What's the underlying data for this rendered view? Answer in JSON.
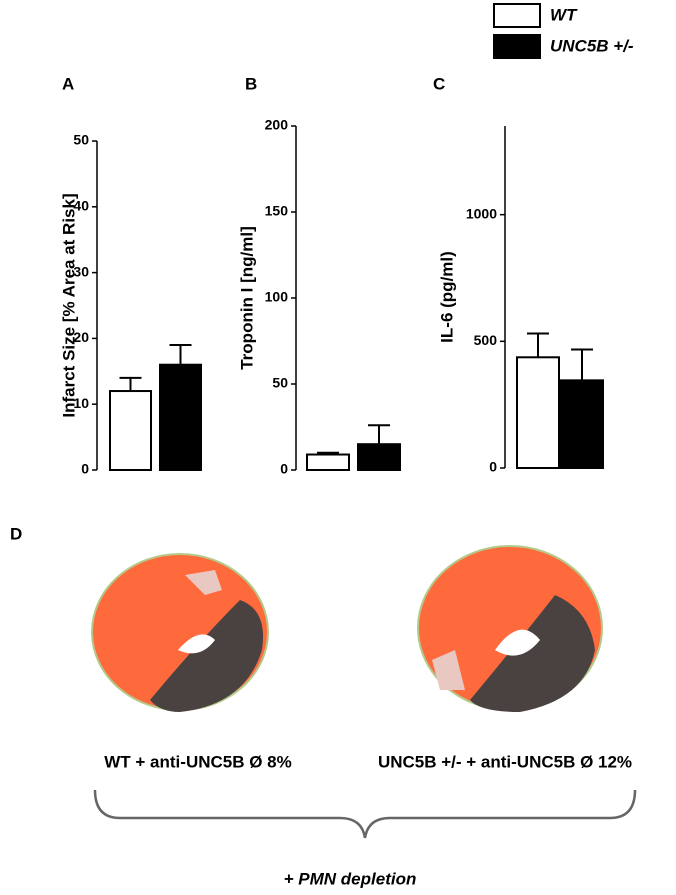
{
  "legend": [
    {
      "name": "WT",
      "color": "#ffffff"
    },
    {
      "name": "UNC5B +/-",
      "color": "#000000"
    }
  ],
  "chart_data": [
    {
      "type": "bar",
      "panel_label": "A",
      "ylabel": "Infarct Size  [% Area at Risk]",
      "ylim": [
        0,
        50
      ],
      "yticks": [
        0,
        10,
        20,
        30,
        40,
        50
      ],
      "series": [
        {
          "values": [
            12
          ],
          "errors": [
            2
          ]
        },
        {
          "values": [
            16
          ],
          "errors": [
            3
          ]
        }
      ]
    },
    {
      "type": "bar",
      "panel_label": "B",
      "ylabel": "Troponin I [ng/ml]",
      "ylim": [
        0,
        200
      ],
      "yticks": [
        0,
        50,
        100,
        150,
        200
      ],
      "series": [
        {
          "values": [
            9
          ],
          "errors": [
            1
          ]
        },
        {
          "values": [
            15
          ],
          "errors": [
            11
          ]
        }
      ]
    },
    {
      "type": "bar",
      "panel_label": "C",
      "ylabel": "IL-6 (pg/ml)",
      "ylim": [
        0,
        1350
      ],
      "yticks": [
        0,
        500,
        1000
      ],
      "series": [
        {
          "values": [
            437
          ],
          "errors": [
            94
          ]
        },
        {
          "values": [
            346
          ],
          "errors": [
            122
          ]
        }
      ]
    }
  ],
  "panel_d": {
    "label": "D",
    "captions": [
      "WT + anti-UNC5B Ø 8%",
      "UNC5B +/- + anti-UNC5B Ø 12%"
    ],
    "footer": "+ PMN depletion"
  }
}
